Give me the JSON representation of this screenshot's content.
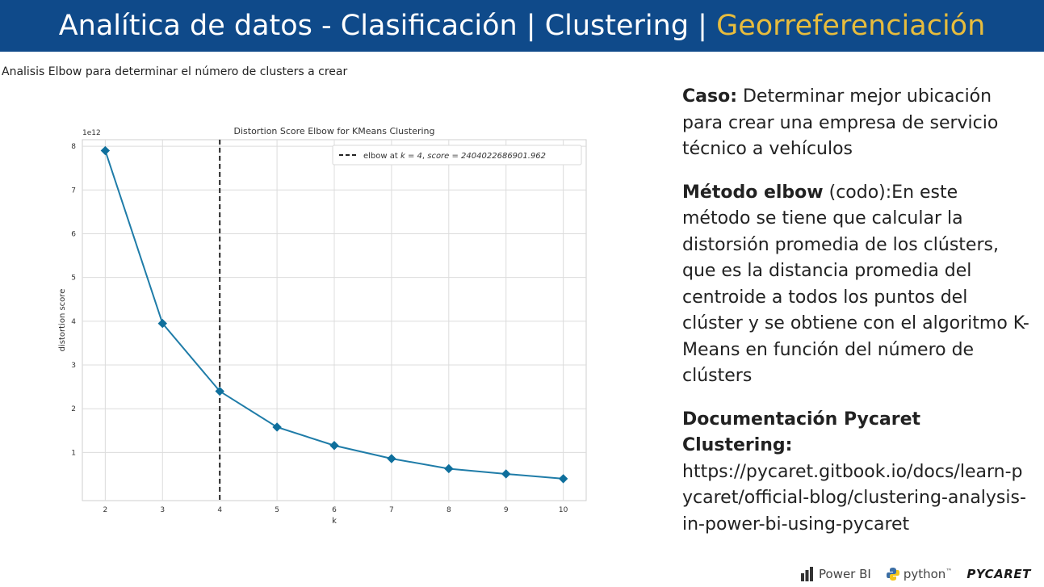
{
  "header": {
    "title_main": "Analítica de datos - Clasificación | Clustering | ",
    "title_highlight": "Georreferenciación"
  },
  "subtitle": "Analisis Elbow para determinar el número de clusters a crear",
  "chart_data": {
    "type": "line",
    "title": "Distortion Score Elbow for KMeans Clustering",
    "xlabel": "k",
    "ylabel": "distortion score",
    "y_multiplier_label": "1e12",
    "x": [
      2,
      3,
      4,
      5,
      6,
      7,
      8,
      9,
      10
    ],
    "series": [
      {
        "values": [
          7.9,
          3.95,
          2.4,
          1.58,
          1.16,
          0.86,
          0.63,
          0.51,
          0.4
        ]
      }
    ],
    "xlim": [
      1.6,
      10.4
    ],
    "ylim": [
      -0.1,
      8.15
    ],
    "x_ticks": [
      "2",
      "3",
      "4",
      "5",
      "6",
      "7",
      "8",
      "9",
      "10"
    ],
    "y_ticks": [
      "1",
      "2",
      "3",
      "4",
      "5",
      "6",
      "7",
      "8"
    ],
    "elbow": {
      "k": 4,
      "legend_prefix": "elbow at ",
      "legend_k": "k = 4",
      "legend_sep": ", ",
      "legend_score": "score = 2404022686901.962"
    },
    "grid": true,
    "legend_placement": "top-right",
    "line_color": "#1f7ca8",
    "elbow_line_color": "#222222"
  },
  "description": {
    "caso_label": "Caso:",
    "caso_text": " Determinar mejor ubicación para crear una empresa de servicio técnico a vehículos",
    "metodo_label": "Método elbow",
    "metodo_text": " (codo):En este método se tiene que calcular la distorsión promedia de los clústers, que es la distancia promedia del centroide a todos los puntos del clúster y se obtiene con el algoritmo K-Means en función del número de clústers",
    "doc_label": "Documentación Pycaret Clustering:",
    "doc_url": "https://pycaret.gitbook.io/docs/learn-pycaret/official-blog/clustering-analysis-in-power-bi-using-pycaret"
  },
  "logos": {
    "powerbi": "Power BI",
    "python": "python",
    "python_tm": "™",
    "pycaret": "PYCARET"
  },
  "colors": {
    "header_bg": "#0f4a8a",
    "header_highlight": "#e7bc3d"
  }
}
